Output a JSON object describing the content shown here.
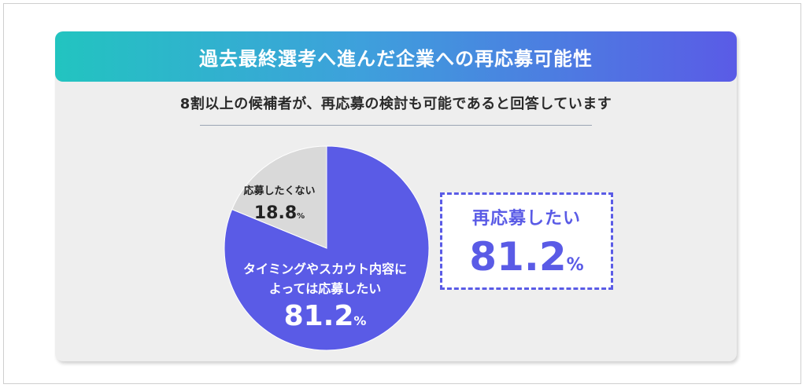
{
  "title": "過去最終選考へ進んだ企業への再応募可能性",
  "subtitle": "8割以上の候補者が、再応募の検討も可能であると回答しています",
  "highlight": {
    "label": "再応募したい",
    "value": "81.2",
    "unit": "%"
  },
  "colors": {
    "accent": "#5a5be6",
    "minor_slice": "#d9d9d9",
    "banner_start": "#22c4c0",
    "banner_end": "#5a5be6"
  },
  "chart_data": {
    "type": "pie",
    "slices": [
      {
        "label_lines": [
          "タイミングやスカウト内容に",
          "よっては応募したい"
        ],
        "value": 81.2,
        "display": "81.2",
        "unit": "%",
        "color": "#5a5be6"
      },
      {
        "label_lines": [
          "応募したくない"
        ],
        "value": 18.8,
        "display": "18.8",
        "unit": "%",
        "color": "#d9d9d9"
      }
    ]
  }
}
